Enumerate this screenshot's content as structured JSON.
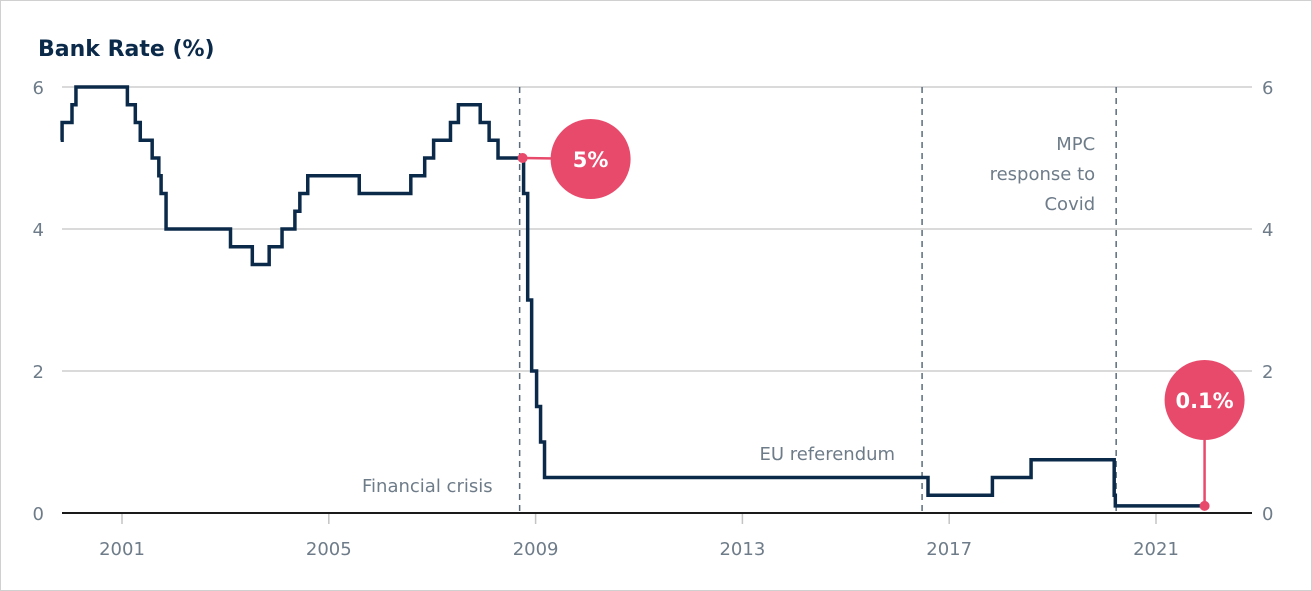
{
  "chart_data": {
    "type": "line",
    "step": true,
    "title": "Bank Rate (%)",
    "xlabel": "",
    "ylabel": "",
    "xlim": [
      "1999-10-25",
      "2022-12-31"
    ],
    "ylim": [
      0,
      6
    ],
    "x_ticks": [
      "2001",
      "2005",
      "2009",
      "2013",
      "2017",
      "2021"
    ],
    "y_ticks": [
      "0",
      "2",
      "4",
      "6"
    ],
    "y_axis_sides": [
      "left",
      "right"
    ],
    "grid": true,
    "series": [
      {
        "color": "#0b2a4a",
        "points": [
          [
            "1999-10-25",
            5.25
          ],
          [
            "1999-11-04",
            5.5
          ],
          [
            "2000-01-13",
            5.75
          ],
          [
            "2000-02-10",
            6.0
          ],
          [
            "2001-02-08",
            5.75
          ],
          [
            "2001-04-05",
            5.5
          ],
          [
            "2001-05-10",
            5.25
          ],
          [
            "2001-08-02",
            5.0
          ],
          [
            "2001-09-18",
            4.75
          ],
          [
            "2001-10-04",
            4.5
          ],
          [
            "2001-11-08",
            4.0
          ],
          [
            "2003-02-06",
            3.75
          ],
          [
            "2003-07-10",
            3.5
          ],
          [
            "2003-11-06",
            3.75
          ],
          [
            "2004-02-05",
            4.0
          ],
          [
            "2004-05-06",
            4.25
          ],
          [
            "2004-06-10",
            4.5
          ],
          [
            "2004-08-05",
            4.75
          ],
          [
            "2005-08-04",
            4.5
          ],
          [
            "2006-08-03",
            4.75
          ],
          [
            "2006-11-09",
            5.0
          ],
          [
            "2007-01-11",
            5.25
          ],
          [
            "2007-05-10",
            5.5
          ],
          [
            "2007-07-05",
            5.75
          ],
          [
            "2007-12-06",
            5.5
          ],
          [
            "2008-02-07",
            5.25
          ],
          [
            "2008-04-10",
            5.0
          ],
          [
            "2008-10-08",
            4.5
          ],
          [
            "2008-11-06",
            3.0
          ],
          [
            "2008-12-04",
            2.0
          ],
          [
            "2009-01-08",
            1.5
          ],
          [
            "2009-02-05",
            1.0
          ],
          [
            "2009-03-05",
            0.5
          ],
          [
            "2016-08-04",
            0.25
          ],
          [
            "2017-11-02",
            0.5
          ],
          [
            "2018-08-02",
            0.75
          ],
          [
            "2020-03-11",
            0.25
          ],
          [
            "2020-03-19",
            0.1
          ],
          [
            "2021-12-10",
            0.1
          ]
        ]
      }
    ],
    "events": [
      {
        "date": "2008-09-10",
        "label": [
          "Financial crisis"
        ]
      },
      {
        "date": "2016-06-23",
        "label": [
          "EU referendum"
        ]
      },
      {
        "date": "2020-03-25",
        "label": [
          "MPC",
          "response to",
          "Covid"
        ]
      }
    ],
    "callouts": [
      {
        "date": "2008-10-01",
        "value": 5.0,
        "label": "5%",
        "color": "#e84a6c"
      },
      {
        "date": "2021-12-10",
        "value": 0.1,
        "label": "0.1%",
        "color": "#e84a6c"
      }
    ]
  }
}
